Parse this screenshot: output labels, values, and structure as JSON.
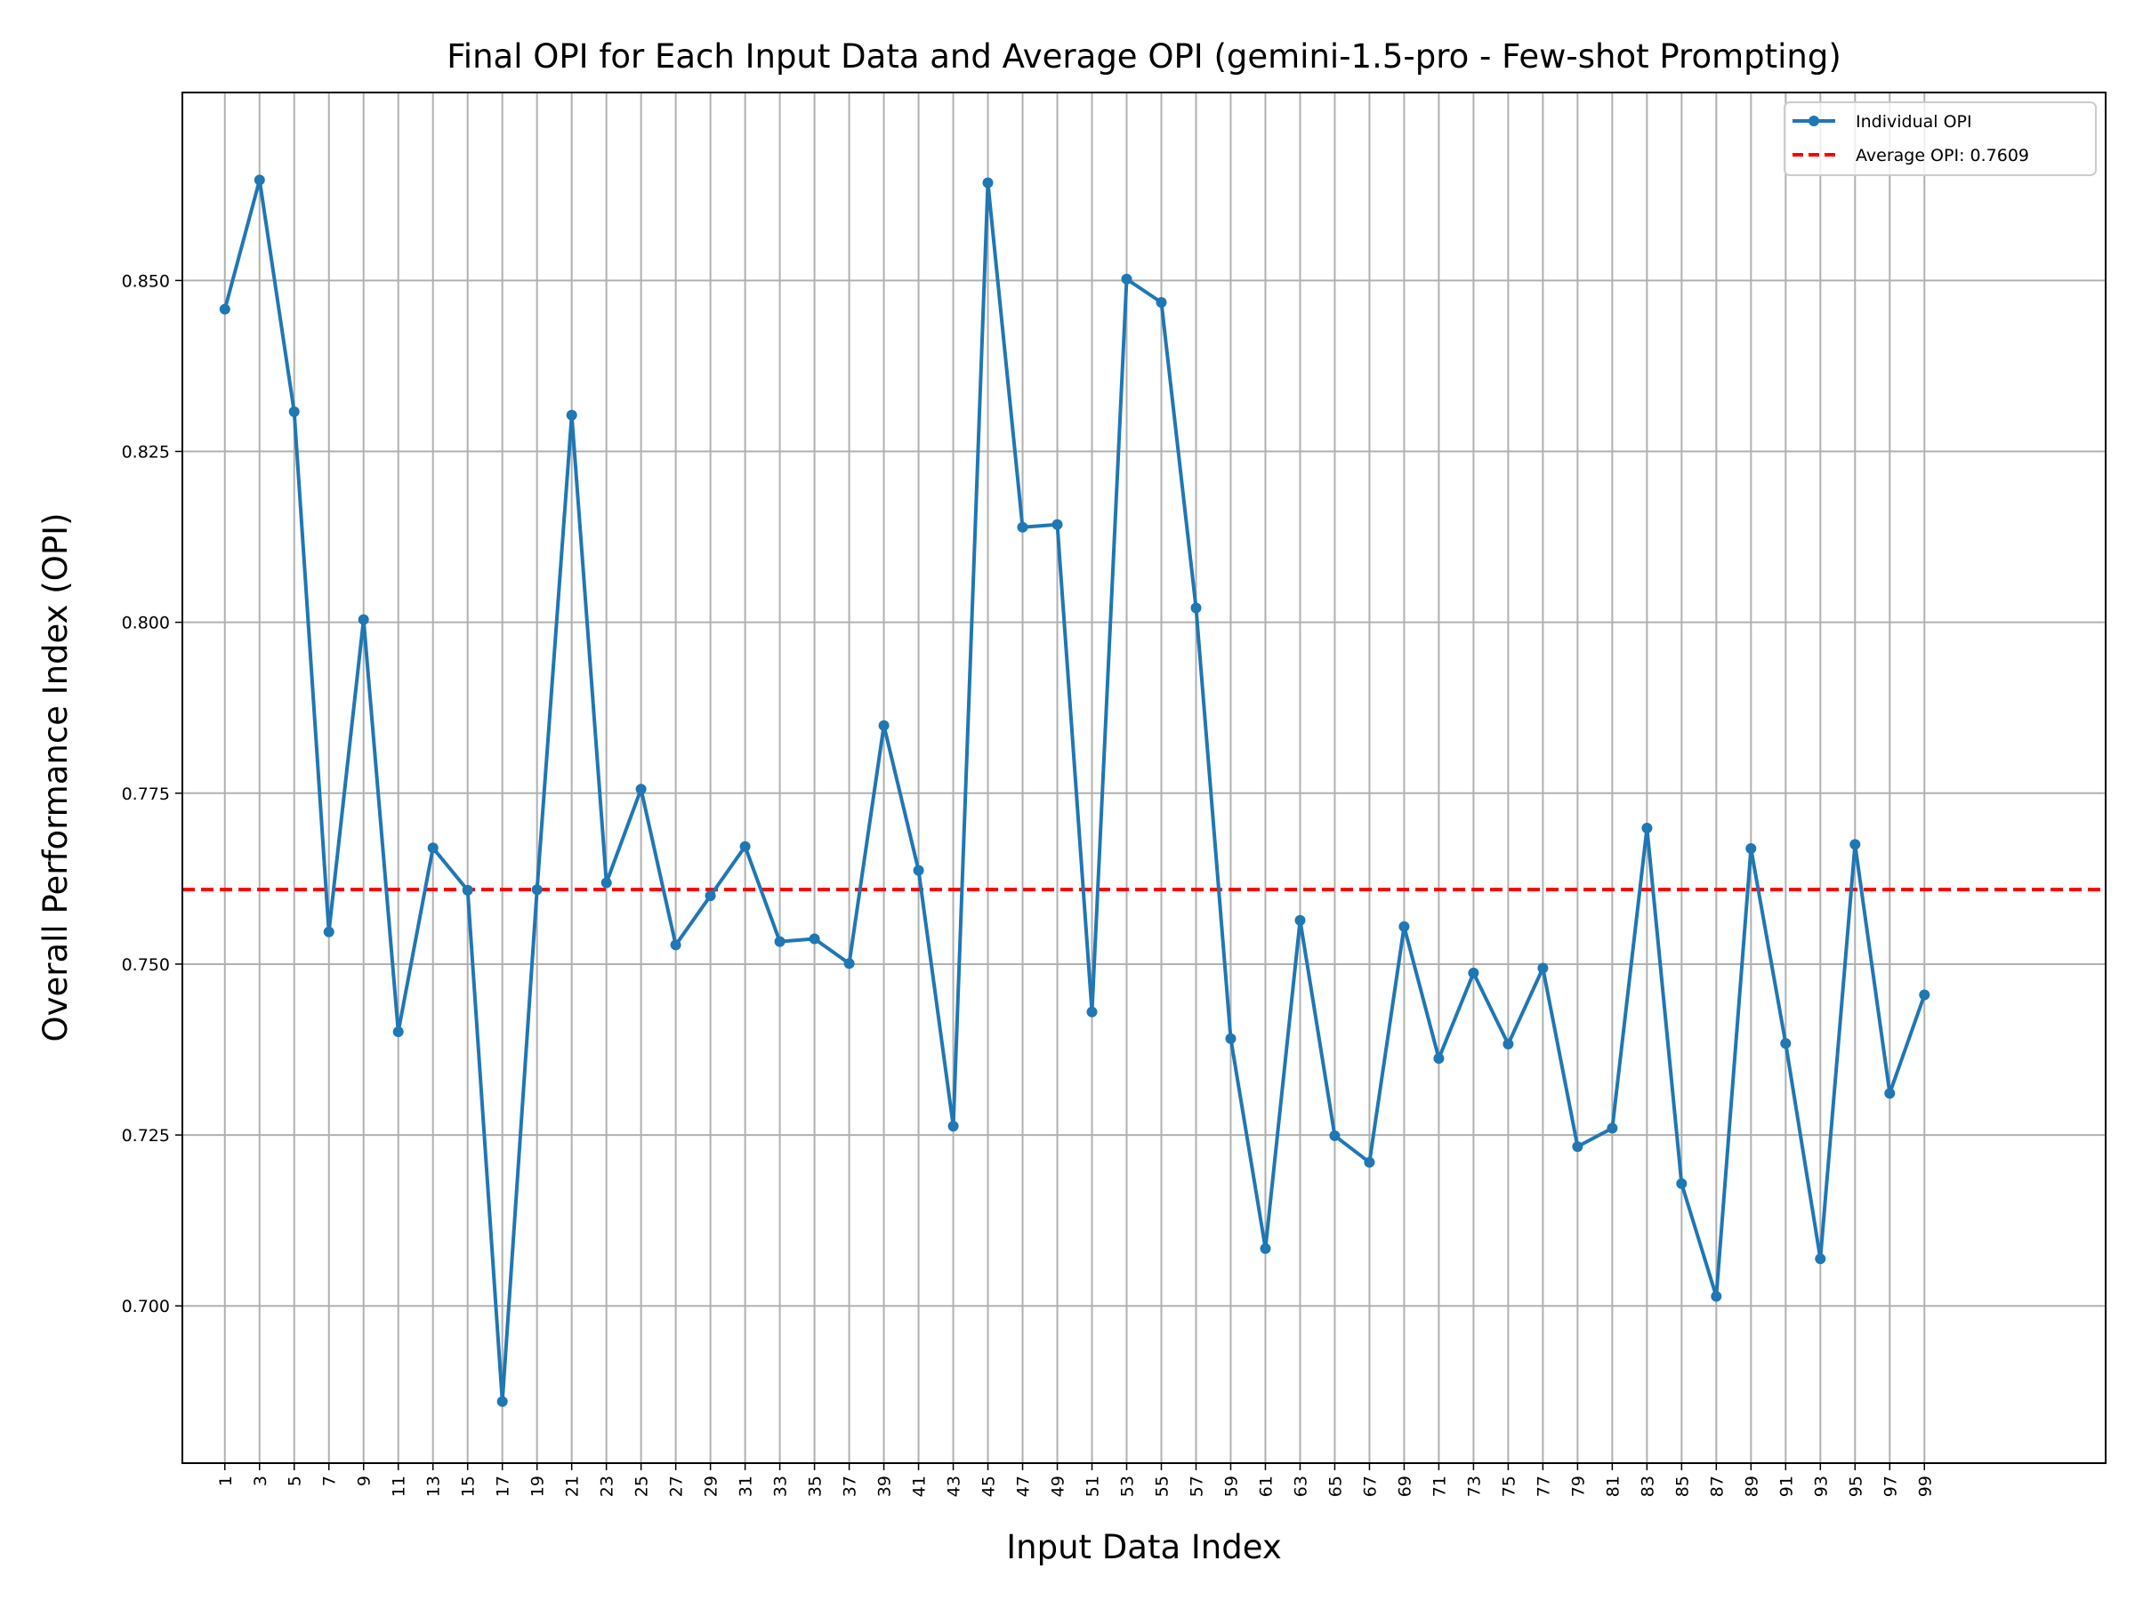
{
  "chart_data": {
    "type": "line",
    "title": "Final OPI for Each Input Data and Average OPI (gemini-1.5-pro - Few-shot Prompting)",
    "xlabel": "Input Data Index",
    "ylabel": "Overall Performance Index (OPI)",
    "xlim": [
      -1.45,
      109.45
    ],
    "ylim": [
      0.677,
      0.8775
    ],
    "x_ticks": [
      "1",
      "3",
      "5",
      "7",
      "9",
      "11",
      "13",
      "15",
      "17",
      "19",
      "21",
      "23",
      "25",
      "27",
      "29",
      "31",
      "33",
      "35",
      "37",
      "39",
      "41",
      "43",
      "45",
      "47",
      "49",
      "51",
      "53",
      "55",
      "57",
      "59",
      "61",
      "63",
      "65",
      "67",
      "69",
      "71",
      "73",
      "75",
      "77",
      "79",
      "81",
      "83",
      "85",
      "87",
      "89",
      "91",
      "93",
      "95",
      "97",
      "99"
    ],
    "y_ticks": [
      "0.700",
      "0.725",
      "0.750",
      "0.775",
      "0.800",
      "0.825",
      "0.850"
    ],
    "grid": true,
    "legend_position": "top-right",
    "series": [
      {
        "name": "Individual OPI",
        "kind": "line-markers",
        "color": "#1f77b4",
        "x": [
          1,
          3,
          5,
          7,
          9,
          11,
          13,
          15,
          17,
          19,
          21,
          23,
          25,
          27,
          29,
          31,
          33,
          35,
          37,
          39,
          41,
          43,
          45,
          47,
          49,
          51,
          53,
          55,
          57,
          59,
          61,
          63,
          65,
          67,
          69,
          71,
          73,
          75,
          77,
          79,
          81,
          83,
          85,
          87,
          89,
          91,
          93,
          95,
          97,
          99
        ],
        "values": [
          0.8458,
          0.8647,
          0.8308,
          0.7547,
          0.8004,
          0.7401,
          0.767,
          0.7608,
          0.686,
          0.7609,
          0.8303,
          0.7619,
          0.7756,
          0.7528,
          0.76,
          0.7672,
          0.7533,
          0.7537,
          0.7501,
          0.7849,
          0.7637,
          0.7263,
          0.8643,
          0.8139,
          0.8143,
          0.743,
          0.8502,
          0.8468,
          0.8021,
          0.7391,
          0.7084,
          0.7564,
          0.7249,
          0.721,
          0.7555,
          0.7362,
          0.7487,
          0.7383,
          0.7494,
          0.7233,
          0.726,
          0.7699,
          0.7179,
          0.7014,
          0.7669,
          0.7384,
          0.7069,
          0.7675,
          0.7311,
          0.7455
        ]
      },
      {
        "name": "Average OPI: 0.7609",
        "kind": "hline-dashed",
        "color": "#ff0000",
        "y": 0.7609
      }
    ]
  }
}
